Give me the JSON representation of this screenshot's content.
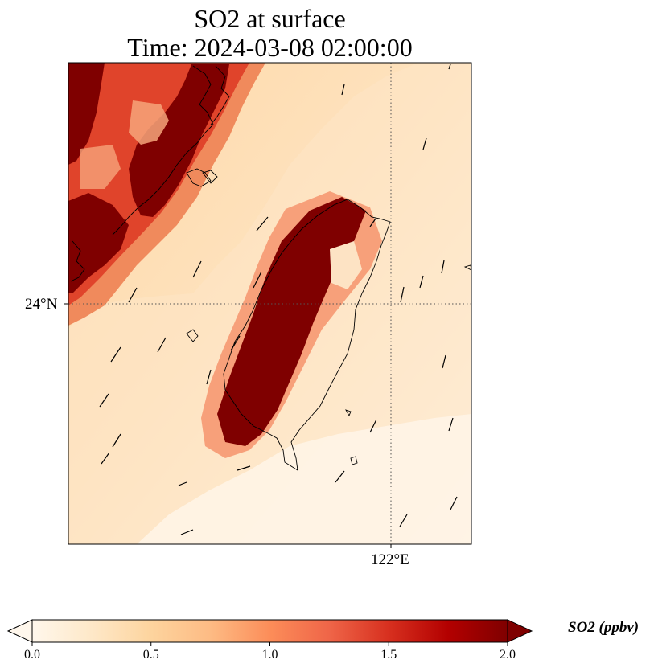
{
  "title_line1": "SO2 at surface",
  "title_line2": "Time: 2024-03-08 02:00:00",
  "axes": {
    "lat_label": "24°N",
    "lon_label": "122°E"
  },
  "colorbar": {
    "label": "SO2 (ppbv)",
    "ticks": [
      "0.0",
      "0.5",
      "1.0",
      "1.5",
      "2.0"
    ],
    "min": 0.0,
    "max": 2.0,
    "extend": "both",
    "colormap": "OrRd",
    "colors": [
      "#fff7ec",
      "#fee8c8",
      "#fdd49e",
      "#fdbb84",
      "#fc8d59",
      "#ef6548",
      "#d7301f",
      "#b30000",
      "#7f0000"
    ]
  },
  "map": {
    "region": "Taiwan",
    "field": "SO2",
    "overlays": [
      "coastline",
      "wind-vectors",
      "gridlines"
    ],
    "gridline_style": "dotted"
  }
}
